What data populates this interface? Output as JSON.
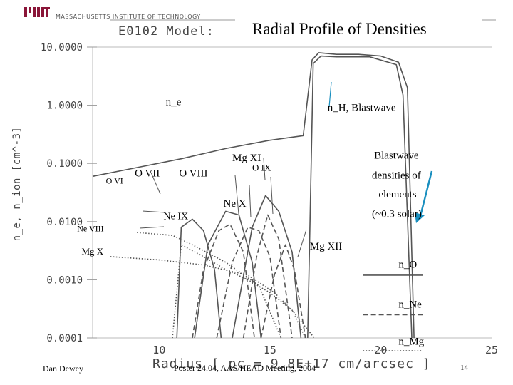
{
  "header": {
    "institution": "MASSACHUSETTS INSTITUTE OF TECHNOLOGY",
    "model_label": "E0102 Model:",
    "title": "Radial Profile of Densities"
  },
  "footer": {
    "author": "Dan Dewey",
    "center": "Poster 24.04, AAS/HEAD Meeting, 2004",
    "page": "14"
  },
  "colors": {
    "accent_arrow": "#1a8fbf",
    "curves": "#555555"
  },
  "chart_data": {
    "type": "line",
    "title": "Radial Profile of Densities",
    "xlabel": "Radius [ pc = 9.8E+17 cm/arcsec ]",
    "ylabel": "n_e, n_ion [cm^-3]",
    "xlim": [
      7,
      25
    ],
    "ylim": [
      0.0001,
      10
    ],
    "y_scale": "log",
    "x_ticks": [
      10,
      15,
      20,
      25
    ],
    "x_tick_labels": [
      "10",
      "15",
      "20",
      "25"
    ],
    "y_ticks": [
      10,
      1,
      0.1,
      0.01,
      0.001,
      0.0001
    ],
    "y_tick_labels": [
      "10.0000",
      "1.0000",
      "0.1000",
      "0.0100",
      "0.0010",
      "0.0001"
    ],
    "grid": false,
    "series": [
      {
        "name": "n_e",
        "style": "solid",
        "x": [
          7.0,
          9.0,
          11.0,
          13.0,
          15.0,
          16.5,
          16.9,
          17.2,
          18.0,
          19.0,
          20.0,
          20.8,
          21.2,
          21.5
        ],
        "y": [
          0.06,
          0.085,
          0.12,
          0.18,
          0.25,
          0.3,
          6,
          8,
          7.5,
          7.5,
          7,
          5.5,
          2,
          0.0001
        ]
      },
      {
        "name": "n_H, Blastwave",
        "style": "solid",
        "x": [
          16.7,
          16.95,
          17.3,
          18.0,
          19.5,
          20.7,
          21.0,
          21.4
        ],
        "y": [
          0.0001,
          5.2,
          7,
          6.8,
          6.8,
          5,
          1.5,
          0.0001
        ]
      },
      {
        "name": "O VII",
        "style": "solid",
        "x": [
          10.8,
          11.0,
          11.5,
          12.0,
          12.5,
          12.8
        ],
        "y": [
          0.0001,
          0.008,
          0.011,
          0.007,
          0.0015,
          0.0001
        ]
      },
      {
        "name": "O VIII",
        "style": "solid",
        "x": [
          11.6,
          12.2,
          13.0,
          13.6,
          14.2,
          14.6
        ],
        "y": [
          0.0001,
          0.004,
          0.015,
          0.013,
          0.002,
          0.0001
        ]
      },
      {
        "name": "O IX",
        "style": "solid",
        "x": [
          13.3,
          14.2,
          14.8,
          15.4,
          16.0,
          16.4
        ],
        "y": [
          0.0001,
          0.008,
          0.028,
          0.015,
          0.003,
          0.0001
        ]
      },
      {
        "name": "Ne IX",
        "style": "dashed",
        "x": [
          11.5,
          12.0,
          12.7,
          13.2,
          13.8,
          14.3
        ],
        "y": [
          0.0001,
          0.0015,
          0.007,
          0.009,
          0.003,
          0.0001
        ]
      },
      {
        "name": "Ne X",
        "style": "dashed",
        "x": [
          12.6,
          13.3,
          14.0,
          14.5,
          15.0,
          15.5
        ],
        "y": [
          0.0001,
          0.002,
          0.008,
          0.007,
          0.0025,
          0.0001
        ]
      },
      {
        "name": "Mg XI",
        "style": "dashed",
        "x": [
          13.8,
          14.4,
          14.9,
          15.4,
          16.0
        ],
        "y": [
          0.0001,
          0.0025,
          0.013,
          0.005,
          0.0001
        ]
      },
      {
        "name": "Mg XII",
        "style": "dashed",
        "x": [
          14.6,
          15.2,
          15.7,
          16.1,
          16.6
        ],
        "y": [
          0.0001,
          0.0012,
          0.004,
          0.0015,
          0.0001
        ]
      },
      {
        "name": "O VI",
        "style": "dotted",
        "x": [
          10.6,
          11.0,
          12.0,
          13.0,
          14.0,
          15.0,
          16.0,
          17.0
        ],
        "y": [
          0.0001,
          0.004,
          0.0025,
          0.0015,
          0.001,
          0.0006,
          0.0003,
          0.0001
        ]
      },
      {
        "name": "Mg X",
        "style": "dotted",
        "x": [
          7.8,
          10.0,
          12.0,
          14.0,
          15.2,
          16.0,
          16.6
        ],
        "y": [
          0.0025,
          0.0022,
          0.0018,
          0.0012,
          0.0006,
          0.0003,
          0.0001
        ]
      },
      {
        "name": "Ne VIII",
        "style": "dotted",
        "x": [
          9.0,
          10.6,
          11.5,
          13.0,
          14.5,
          15.5
        ],
        "y": [
          0.0065,
          0.0058,
          0.004,
          0.002,
          0.0008,
          0.0001
        ]
      },
      {
        "name": "n_O",
        "style": "solid",
        "x": [
          19.2,
          21.9
        ],
        "y": [
          0.0012,
          0.0012
        ]
      },
      {
        "name": "n_Ne",
        "style": "dashed",
        "x": [
          19.2,
          21.9
        ],
        "y": [
          0.00025,
          0.00025
        ]
      },
      {
        "name": "n_Mg",
        "style": "dotted",
        "x": [
          19.2,
          21.9
        ],
        "y": [
          6e-05,
          6e-05
        ]
      }
    ],
    "annotations": [
      {
        "text": "n_e",
        "x": 10.3,
        "y": 1.0,
        "size": 15
      },
      {
        "text": "n_H, Blastwave",
        "x": 17.6,
        "y": 0.8,
        "size": 15
      },
      {
        "text": "Blastwave",
        "x": 19.7,
        "y": 0.12,
        "size": 15
      },
      {
        "text": "densities of",
        "x": 19.6,
        "y": 0.055,
        "size": 15
      },
      {
        "text": "elements",
        "x": 19.9,
        "y": 0.026,
        "size": 15
      },
      {
        "text": "(~0.3 solar)",
        "x": 19.6,
        "y": 0.012,
        "size": 15
      },
      {
        "text": "Mg XI",
        "x": 13.3,
        "y": 0.11,
        "size": 15
      },
      {
        "text": "O IX",
        "x": 14.2,
        "y": 0.075,
        "size": 13
      },
      {
        "text": "O VII",
        "x": 8.9,
        "y": 0.06,
        "size": 15
      },
      {
        "text": "O VIII",
        "x": 10.9,
        "y": 0.06,
        "size": 15
      },
      {
        "text": "O VI",
        "x": 7.6,
        "y": 0.045,
        "size": 12
      },
      {
        "text": "Ne X",
        "x": 12.9,
        "y": 0.018,
        "size": 15
      },
      {
        "text": "Ne IX",
        "x": 10.2,
        "y": 0.011,
        "size": 14
      },
      {
        "text": "Ne VIII",
        "x": 6.3,
        "y": 0.0068,
        "size": 12
      },
      {
        "text": "Mg X",
        "x": 6.5,
        "y": 0.0027,
        "size": 13
      },
      {
        "text": "Mg XII",
        "x": 16.8,
        "y": 0.0033,
        "size": 15
      },
      {
        "text": "n_O",
        "x": 20.8,
        "y": 0.0016,
        "size": 15
      },
      {
        "text": "n_Ne",
        "x": 20.8,
        "y": 0.00033,
        "size": 15
      },
      {
        "text": "n_Mg",
        "x": 20.8,
        "y": 7.7e-05,
        "size": 15
      }
    ]
  }
}
